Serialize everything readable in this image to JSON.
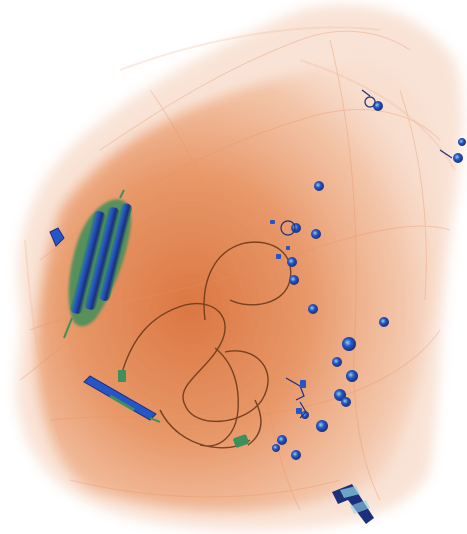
{
  "scene": {
    "kind": "x-ray baggage scan",
    "colors": {
      "background": "#ffffff",
      "organic_light": "#f3c2a6",
      "organic_mid": "#e9905e",
      "organic_dense": "#d9703a",
      "wire": "#6b3a1a",
      "metal_blue": "#2456c8",
      "metal_dark": "#1c2f7a",
      "inorganic_green": "#3f8f5a",
      "highlight_cyan": "#8fd6e6"
    },
    "objects": [
      "bag-outline",
      "battery-pack",
      "coiled-cable",
      "screwdriver",
      "usb-plug",
      "coins",
      "metal-clips",
      "bracket"
    ]
  }
}
